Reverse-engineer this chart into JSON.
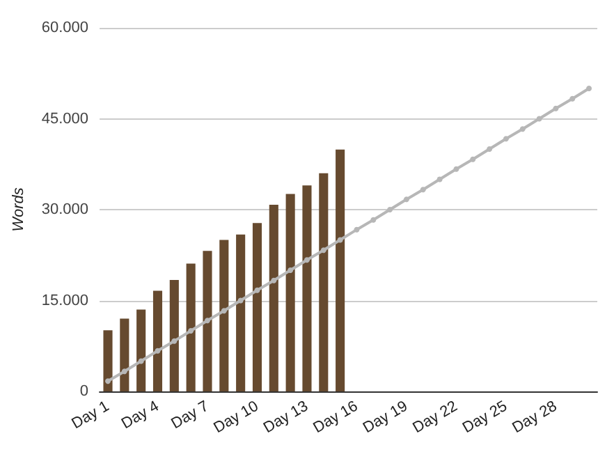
{
  "chart_data": {
    "type": "bar",
    "ylabel": "Words",
    "categories": [
      "Day 1",
      null,
      null,
      "Day 4",
      null,
      null,
      "Day 7",
      null,
      null,
      "Day 10",
      null,
      null,
      "Day 13",
      null,
      null,
      "Day 16",
      null,
      null,
      "Day 19",
      null,
      null,
      "Day 22",
      null,
      null,
      "Day 25",
      null,
      null,
      "Day 28",
      null,
      null
    ],
    "series": [
      {
        "color": "#664a2f",
        "values": [
          10100,
          12000,
          13500,
          16600,
          18400,
          21100,
          23200,
          25000,
          25900,
          27800,
          30800,
          32600,
          34000,
          36000,
          39900,
          null,
          null,
          null,
          null,
          null,
          null,
          null,
          null,
          null,
          null,
          null,
          null,
          null,
          null,
          null
        ]
      },
      {
        "type": "line",
        "color": "#b7b7b7",
        "marker": "circle",
        "values": [
          1700,
          3300,
          5000,
          6700,
          8300,
          10000,
          11700,
          13300,
          15000,
          16700,
          18300,
          20000,
          21700,
          23300,
          25000,
          26700,
          28300,
          30000,
          31700,
          33300,
          35000,
          36700,
          38300,
          40000,
          41700,
          43300,
          45000,
          46700,
          48300,
          50000
        ]
      }
    ],
    "ylim": [
      0,
      60000
    ],
    "yticks": [
      {
        "value": 0,
        "label": "0"
      },
      {
        "value": 15000,
        "label": "15.000"
      },
      {
        "value": 30000,
        "label": "30.000"
      },
      {
        "value": 45000,
        "label": "45.000"
      },
      {
        "value": 60000,
        "label": "60.000"
      }
    ],
    "grid": "y"
  }
}
